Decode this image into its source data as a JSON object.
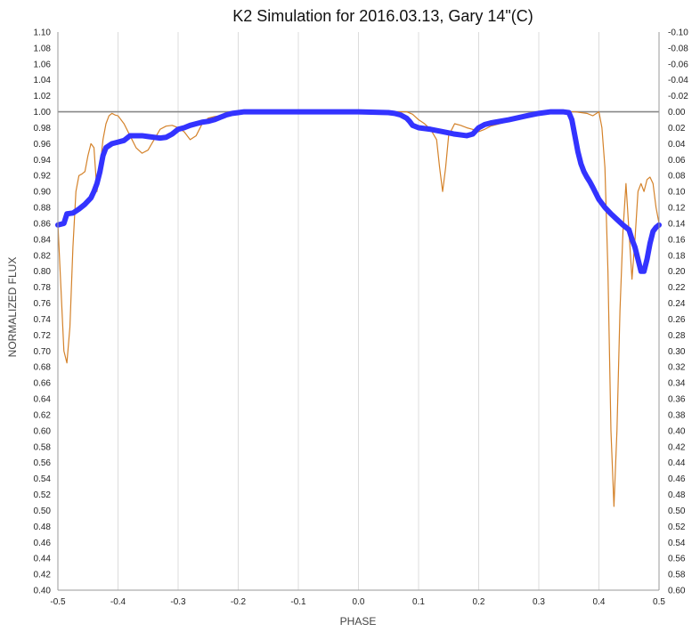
{
  "chart_data": {
    "type": "line",
    "title": "K2 Simulation for 2016.03.13, Gary 14\"(C)",
    "xlabel": "PHASE",
    "ylabel": "NORMALIZED FLUX",
    "xlim": [
      -0.5,
      0.5
    ],
    "ylim": [
      0.4,
      1.1
    ],
    "y2lim": [
      -0.1,
      0.6
    ],
    "y2_inverted": true,
    "x_ticks": [
      "-0.5",
      "-0.4",
      "-0.3",
      "-0.2",
      "-0.1",
      "0.0",
      "0.1",
      "0.2",
      "0.3",
      "0.4",
      "0.5"
    ],
    "y_ticks": [
      "0.40",
      "0.42",
      "0.44",
      "0.46",
      "0.48",
      "0.50",
      "0.52",
      "0.54",
      "0.56",
      "0.58",
      "0.60",
      "0.62",
      "0.64",
      "0.66",
      "0.68",
      "0.70",
      "0.72",
      "0.74",
      "0.76",
      "0.78",
      "0.80",
      "0.82",
      "0.84",
      "0.86",
      "0.88",
      "0.90",
      "0.92",
      "0.94",
      "0.96",
      "0.98",
      "1.00",
      "1.02",
      "1.04",
      "1.06",
      "1.08",
      "1.10"
    ],
    "y2_ticks": [
      "0.60",
      "0.58",
      "0.56",
      "0.54",
      "0.52",
      "0.50",
      "0.48",
      "0.46",
      "0.44",
      "0.42",
      "0.40",
      "0.38",
      "0.36",
      "0.34",
      "0.32",
      "0.30",
      "0.28",
      "0.26",
      "0.24",
      "0.22",
      "0.20",
      "0.18",
      "0.16",
      "0.14",
      "0.12",
      "0.10",
      "0.08",
      "0.06",
      "0.04",
      "0.02",
      "0.00",
      "-0.02",
      "-0.04",
      "-0.06",
      "-0.08",
      "-0.10"
    ],
    "grid": "vertical",
    "reference_line": 1.0,
    "colors": {
      "model": "#3333ff",
      "simulation": "#d4822a",
      "reference": "#888888",
      "grid": "#dcdcdc"
    },
    "series": [
      {
        "key": "model",
        "x": [
          -0.5,
          -0.49,
          -0.485,
          -0.475,
          -0.465,
          -0.455,
          -0.445,
          -0.44,
          -0.435,
          -0.43,
          -0.425,
          -0.42,
          -0.41,
          -0.4,
          -0.39,
          -0.38,
          -0.37,
          -0.36,
          -0.35,
          -0.34,
          -0.33,
          -0.32,
          -0.31,
          -0.3,
          -0.29,
          -0.28,
          -0.27,
          -0.26,
          -0.25,
          -0.24,
          -0.23,
          -0.22,
          -0.21,
          -0.2,
          -0.19,
          -0.18,
          -0.1,
          0.0,
          0.05,
          0.06,
          0.07,
          0.08,
          0.085,
          0.09,
          0.1,
          0.12,
          0.14,
          0.16,
          0.18,
          0.19,
          0.2,
          0.21,
          0.22,
          0.25,
          0.28,
          0.3,
          0.32,
          0.33,
          0.34,
          0.35,
          0.355,
          0.36,
          0.365,
          0.37,
          0.375,
          0.38,
          0.385,
          0.39,
          0.4,
          0.41,
          0.42,
          0.43,
          0.44,
          0.45,
          0.455,
          0.46,
          0.465,
          0.47,
          0.475,
          0.48,
          0.485,
          0.49,
          0.495,
          0.5
        ],
        "y": [
          0.858,
          0.86,
          0.872,
          0.873,
          0.878,
          0.884,
          0.892,
          0.9,
          0.91,
          0.925,
          0.945,
          0.955,
          0.96,
          0.962,
          0.964,
          0.97,
          0.97,
          0.97,
          0.969,
          0.968,
          0.967,
          0.968,
          0.972,
          0.978,
          0.98,
          0.983,
          0.985,
          0.987,
          0.988,
          0.99,
          0.993,
          0.996,
          0.998,
          0.999,
          1.0,
          1.0,
          1.0,
          1.0,
          0.999,
          0.998,
          0.996,
          0.992,
          0.988,
          0.983,
          0.98,
          0.978,
          0.975,
          0.972,
          0.97,
          0.972,
          0.98,
          0.984,
          0.986,
          0.99,
          0.995,
          0.998,
          1.0,
          1.0,
          1.0,
          0.999,
          0.99,
          0.97,
          0.95,
          0.935,
          0.925,
          0.918,
          0.912,
          0.905,
          0.89,
          0.88,
          0.872,
          0.865,
          0.858,
          0.852,
          0.84,
          0.83,
          0.815,
          0.8,
          0.8,
          0.815,
          0.835,
          0.85,
          0.855,
          0.858
        ]
      },
      {
        "key": "simulation",
        "x": [
          -0.5,
          -0.495,
          -0.49,
          -0.485,
          -0.48,
          -0.475,
          -0.47,
          -0.465,
          -0.46,
          -0.455,
          -0.45,
          -0.445,
          -0.44,
          -0.435,
          -0.43,
          -0.425,
          -0.42,
          -0.415,
          -0.41,
          -0.405,
          -0.4,
          -0.39,
          -0.38,
          -0.37,
          -0.36,
          -0.35,
          -0.34,
          -0.33,
          -0.32,
          -0.31,
          -0.3,
          -0.29,
          -0.28,
          -0.27,
          -0.26,
          -0.25,
          -0.24,
          -0.23,
          -0.22,
          -0.21,
          -0.2,
          -0.19,
          -0.18,
          0.0,
          0.07,
          0.08,
          0.09,
          0.1,
          0.11,
          0.12,
          0.13,
          0.135,
          0.14,
          0.145,
          0.15,
          0.16,
          0.17,
          0.18,
          0.19,
          0.2,
          0.21,
          0.22,
          0.25,
          0.28,
          0.3,
          0.32,
          0.34,
          0.36,
          0.38,
          0.39,
          0.4,
          0.405,
          0.41,
          0.415,
          0.42,
          0.425,
          0.43,
          0.435,
          0.44,
          0.445,
          0.45,
          0.455,
          0.46,
          0.465,
          0.47,
          0.475,
          0.48,
          0.485,
          0.49,
          0.495,
          0.5
        ],
        "y": [
          0.86,
          0.78,
          0.7,
          0.685,
          0.73,
          0.83,
          0.9,
          0.92,
          0.922,
          0.925,
          0.945,
          0.96,
          0.955,
          0.9,
          0.93,
          0.965,
          0.985,
          0.995,
          0.998,
          0.996,
          0.995,
          0.985,
          0.97,
          0.955,
          0.948,
          0.952,
          0.965,
          0.978,
          0.982,
          0.983,
          0.98,
          0.975,
          0.965,
          0.97,
          0.985,
          0.992,
          0.994,
          0.995,
          0.996,
          0.998,
          1.0,
          1.0,
          1.0,
          1.0,
          1.0,
          1.0,
          0.997,
          0.99,
          0.985,
          0.978,
          0.965,
          0.93,
          0.9,
          0.93,
          0.97,
          0.985,
          0.983,
          0.98,
          0.978,
          0.975,
          0.978,
          0.982,
          0.988,
          0.995,
          0.998,
          1.0,
          1.0,
          1.0,
          0.998,
          0.995,
          1.0,
          0.98,
          0.93,
          0.8,
          0.6,
          0.505,
          0.6,
          0.75,
          0.85,
          0.91,
          0.85,
          0.79,
          0.84,
          0.9,
          0.91,
          0.9,
          0.915,
          0.918,
          0.91,
          0.88,
          0.86
        ]
      }
    ]
  }
}
